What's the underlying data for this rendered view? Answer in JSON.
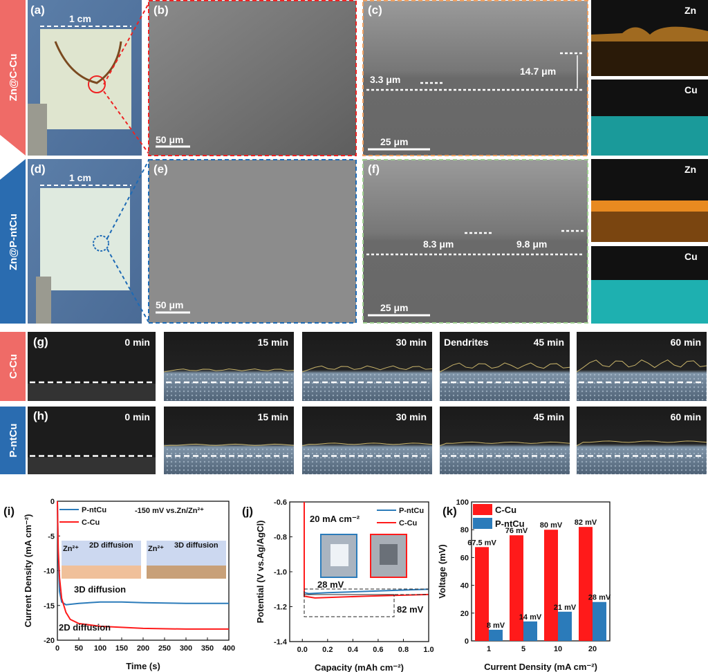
{
  "ribbons": {
    "top1": "Zn@C-Cu",
    "top2": "Zn@P-ntCu",
    "g": "C-Cu",
    "h": "P-ntCu"
  },
  "panels": {
    "a": "(a)",
    "b": "(b)",
    "c": "(c)",
    "d": "(d)",
    "e": "(e)",
    "f": "(f)",
    "g": "(g)",
    "h": "(h)",
    "i": "(i)",
    "j": "(j)",
    "k": "(k)"
  },
  "scale": {
    "cm": "1 cm",
    "b": "50 μm",
    "c": "25 μm",
    "e": "50 μm",
    "f": "25 μm"
  },
  "thickness": {
    "c1": "3.3 μm",
    "c2": "14.7 μm",
    "f1": "8.3 μm",
    "f2": "9.8 μm"
  },
  "eds": {
    "zn": "Zn",
    "cu": "Cu"
  },
  "times": [
    "0 min",
    "15 min",
    "30 min",
    "45 min",
    "60 min"
  ],
  "dendrites": "Dendrites",
  "colors": {
    "ccu": "#ff1a1a",
    "pntcu": "#2b7bba",
    "ribbon_red": "#ef6b67",
    "ribbon_blue": "#2a6cb0"
  },
  "chart_data": [
    {
      "type": "line",
      "title": "-150 mV vs.Zn/Zn²⁺",
      "xlabel": "Time (s)",
      "ylabel": "Current Density (mA cm⁻²)",
      "xlim": [
        0,
        400
      ],
      "ylim": [
        -20,
        0
      ],
      "xticks": [
        "0",
        "50",
        "100",
        "150",
        "200",
        "250",
        "300",
        "350",
        "400"
      ],
      "yticks": [
        "0",
        "-5",
        "-10",
        "-15",
        "-20"
      ],
      "legend": "top-left",
      "series": [
        {
          "name": "P-ntCu",
          "points": [
            [
              0,
              0
            ],
            [
              2,
              -8
            ],
            [
              5,
              -13
            ],
            [
              10,
              -14.5
            ],
            [
              20,
              -14.9
            ],
            [
              50,
              -14.7
            ],
            [
              100,
              -14.5
            ],
            [
              150,
              -14.5
            ],
            [
              200,
              -14.6
            ],
            [
              300,
              -14.7
            ],
            [
              400,
              -14.7
            ]
          ]
        },
        {
          "name": "C-Cu",
          "points": [
            [
              0,
              0
            ],
            [
              2,
              -7
            ],
            [
              5,
              -11
            ],
            [
              10,
              -14
            ],
            [
              20,
              -16
            ],
            [
              30,
              -17
            ],
            [
              50,
              -17.6
            ],
            [
              100,
              -18
            ],
            [
              200,
              -18.3
            ],
            [
              300,
              -18.4
            ],
            [
              400,
              -18.4
            ]
          ]
        }
      ],
      "annotations": {
        "diff3d": "3D diffusion",
        "diff2d": "2D diffusion",
        "inset2d": "2D diffusion",
        "inset3d": "3D diffusion",
        "ion": "Zn²⁺"
      }
    },
    {
      "type": "line",
      "title": "20 mA cm⁻²",
      "xlabel": "Capacity (mAh cm⁻²)",
      "ylabel": "Potential (V vs.Ag/AgCl)",
      "xlim": [
        -0.1,
        1.0
      ],
      "ylim": [
        -1.4,
        -0.6
      ],
      "xticks": [
        "0.0",
        "0.2",
        "0.4",
        "0.6",
        "0.8",
        "1.0"
      ],
      "yticks": [
        "-0.6",
        "-0.8",
        "-1.0",
        "-1.2",
        "-1.4"
      ],
      "legend": "top-right",
      "series": [
        {
          "name": "P-ntCu",
          "points": [
            [
              0.02,
              -1.12
            ],
            [
              0.05,
              -1.125
            ],
            [
              0.2,
              -1.12
            ],
            [
              0.6,
              -1.11
            ],
            [
              1.0,
              -1.1
            ]
          ]
        },
        {
          "name": "C-Cu",
          "points": [
            [
              0.015,
              -0.6
            ],
            [
              0.015,
              -1.14
            ],
            [
              0.1,
              -1.15
            ],
            [
              0.5,
              -1.14
            ],
            [
              1.0,
              -1.13
            ]
          ]
        }
      ],
      "annotations": {
        "p": "28 mV",
        "c": "82 mV"
      }
    },
    {
      "type": "bar",
      "xlabel": "Current Density (mA cm⁻²)",
      "ylabel": "Voltage (mV)",
      "ylim": [
        0,
        100
      ],
      "categories": [
        "1",
        "5",
        "10",
        "20"
      ],
      "yticks": [
        "0",
        "20",
        "40",
        "60",
        "80",
        "100"
      ],
      "legend": "top-left",
      "series": [
        {
          "name": "C-Cu",
          "values": [
            67.5,
            76,
            80,
            82
          ],
          "labels": [
            "67.5 mV",
            "76 mV",
            "80 mV",
            "82 mV"
          ]
        },
        {
          "name": "P-ntCu",
          "values": [
            8,
            14,
            21,
            28
          ],
          "labels": [
            "8 mV",
            "14 mV",
            "21 mV",
            "28 mV"
          ]
        }
      ]
    }
  ]
}
